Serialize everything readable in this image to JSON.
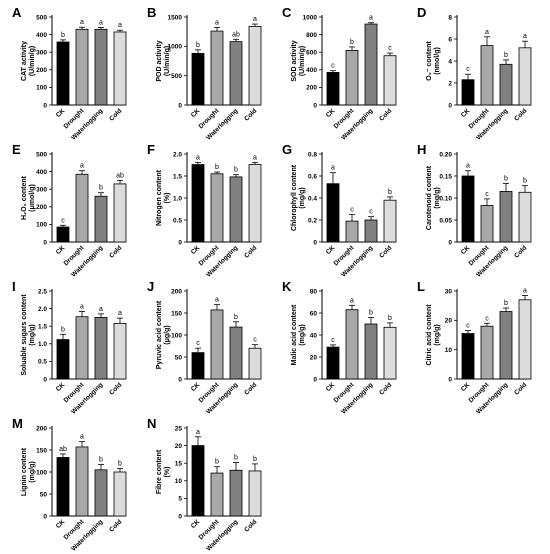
{
  "chart_data": [
    {
      "panel": "A",
      "type": "bar",
      "ylabel": [
        "CAT activity",
        "(U/min/g)"
      ],
      "ylim": [
        0,
        500
      ],
      "yticks": [
        0,
        100,
        200,
        300,
        400,
        500
      ],
      "categories": [
        "CK",
        "Drought",
        "Waterlogging",
        "Cold"
      ],
      "values": [
        358,
        430,
        430,
        415
      ],
      "errors": [
        12,
        12,
        10,
        10
      ],
      "letters": [
        "b",
        "a",
        "a",
        "a"
      ]
    },
    {
      "panel": "B",
      "type": "bar",
      "ylabel": [
        "POD activity",
        "(U/min/g)"
      ],
      "ylim": [
        0,
        1500
      ],
      "yticks": [
        0,
        500,
        1000,
        1500
      ],
      "categories": [
        "CK",
        "Drought",
        "Waterlogging",
        "Cold"
      ],
      "values": [
        880,
        1260,
        1080,
        1340
      ],
      "errors": [
        60,
        60,
        40,
        40
      ],
      "letters": [
        "b",
        "a",
        "ab",
        "a"
      ]
    },
    {
      "panel": "C",
      "type": "bar",
      "ylabel": [
        "SOD activity",
        "(U/min/g)"
      ],
      "ylim": [
        0,
        1000
      ],
      "yticks": [
        0,
        200,
        400,
        600,
        800,
        1000
      ],
      "categories": [
        "CK",
        "Drought",
        "Waterlogging",
        "Cold"
      ],
      "values": [
        370,
        620,
        920,
        560
      ],
      "errors": [
        20,
        40,
        15,
        30
      ],
      "letters": [
        "c",
        "b",
        "a",
        "c"
      ]
    },
    {
      "panel": "D",
      "type": "bar",
      "ylabel": [
        "O₂⁻ content",
        "(nmol/g)"
      ],
      "ylim": [
        0,
        8
      ],
      "yticks": [
        0,
        2,
        4,
        6,
        8
      ],
      "categories": [
        "CK",
        "Drought",
        "Waterlogging",
        "Cold"
      ],
      "values": [
        2.3,
        5.4,
        3.7,
        5.2
      ],
      "errors": [
        0.5,
        0.8,
        0.4,
        0.6
      ],
      "letters": [
        "c",
        "a",
        "b",
        "a"
      ]
    },
    {
      "panel": "E",
      "type": "bar",
      "ylabel": [
        "H₂O₂ content",
        "(μmol/g)"
      ],
      "ylim": [
        0,
        500
      ],
      "yticks": [
        0,
        100,
        200,
        300,
        400,
        500
      ],
      "categories": [
        "CK",
        "Drought",
        "Waterlogging",
        "Cold"
      ],
      "values": [
        85,
        385,
        260,
        330
      ],
      "errors": [
        10,
        20,
        20,
        20
      ],
      "letters": [
        "c",
        "a",
        "b",
        "ab"
      ]
    },
    {
      "panel": "F",
      "type": "bar",
      "ylabel": [
        "Nitrogen content",
        "(%)"
      ],
      "ylim": [
        0,
        2.0
      ],
      "yticks": [
        0,
        0.5,
        1.0,
        1.5,
        2.0
      ],
      "categories": [
        "CK",
        "Drought",
        "Waterlogging",
        "Cold"
      ],
      "values": [
        1.76,
        1.55,
        1.48,
        1.76
      ],
      "errors": [
        0.05,
        0.04,
        0.05,
        0.05
      ],
      "letters": [
        "a",
        "b",
        "b",
        "a"
      ]
    },
    {
      "panel": "G",
      "type": "bar",
      "ylabel": [
        "Chlorophyll content",
        "(mg/g)"
      ],
      "ylim": [
        0,
        0.8
      ],
      "yticks": [
        0,
        0.2,
        0.4,
        0.6,
        0.8
      ],
      "categories": [
        "CK",
        "Drought",
        "Waterlogging",
        "Cold"
      ],
      "values": [
        0.53,
        0.19,
        0.2,
        0.38
      ],
      "errors": [
        0.1,
        0.06,
        0.03,
        0.03
      ],
      "letters": [
        "a",
        "c",
        "c",
        "b"
      ]
    },
    {
      "panel": "H",
      "type": "bar",
      "ylabel": [
        "Carotenoid content",
        "(mg/g)"
      ],
      "ylim": [
        0,
        0.2
      ],
      "yticks": [
        0,
        0.05,
        0.1,
        0.15,
        0.2
      ],
      "categories": [
        "CK",
        "Drought",
        "Waterlogging",
        "Cold"
      ],
      "values": [
        0.15,
        0.083,
        0.115,
        0.113
      ],
      "errors": [
        0.012,
        0.015,
        0.018,
        0.015
      ],
      "letters": [
        "a",
        "c",
        "b",
        "b"
      ]
    },
    {
      "panel": "I",
      "type": "bar",
      "ylabel": [
        "Soluable sugars content",
        "(mg/g)"
      ],
      "ylim": [
        0,
        2.5
      ],
      "yticks": [
        0,
        0.5,
        1.0,
        1.5,
        2.0,
        2.5
      ],
      "categories": [
        "CK",
        "Drought",
        "Waterlogging",
        "Cold"
      ],
      "values": [
        1.12,
        1.77,
        1.75,
        1.58
      ],
      "errors": [
        0.15,
        0.15,
        0.1,
        0.15
      ],
      "letters": [
        "b",
        "a",
        "a",
        "a"
      ]
    },
    {
      "panel": "J",
      "type": "bar",
      "ylabel": [
        "Pyruvic acid content",
        "(μg/g)"
      ],
      "ylim": [
        0,
        200
      ],
      "yticks": [
        0,
        50,
        100,
        150,
        200
      ],
      "categories": [
        "CK",
        "Drought",
        "Waterlogging",
        "Cold"
      ],
      "values": [
        60,
        157,
        118,
        70
      ],
      "errors": [
        10,
        12,
        12,
        8
      ],
      "letters": [
        "c",
        "a",
        "b",
        "c"
      ]
    },
    {
      "panel": "K",
      "type": "bar",
      "ylabel": [
        "Malic acid content",
        "(mg/g)"
      ],
      "ylim": [
        0,
        80
      ],
      "yticks": [
        0,
        20,
        40,
        60,
        80
      ],
      "categories": [
        "CK",
        "Drought",
        "Waterlogging",
        "Cold"
      ],
      "values": [
        29,
        63,
        50,
        47
      ],
      "errors": [
        2,
        4,
        6,
        4
      ],
      "letters": [
        "c",
        "a",
        "b",
        "b"
      ]
    },
    {
      "panel": "L",
      "type": "bar",
      "ylabel": [
        "Citric acid content",
        "(mg/g)"
      ],
      "ylim": [
        0,
        30
      ],
      "yticks": [
        0,
        10,
        20,
        30
      ],
      "categories": [
        "CK",
        "Drought",
        "Waterlogging",
        "Cold"
      ],
      "values": [
        15.5,
        18,
        23,
        27
      ],
      "errors": [
        1,
        1,
        1.2,
        1.5
      ],
      "letters": [
        "c",
        "c",
        "b",
        "a"
      ]
    },
    {
      "panel": "M",
      "type": "bar",
      "ylabel": [
        "Lignin content",
        "(mg/g)"
      ],
      "ylim": [
        0,
        200
      ],
      "yticks": [
        0,
        50,
        100,
        150,
        200
      ],
      "categories": [
        "CK",
        "Drought",
        "Waterlogging",
        "Cold"
      ],
      "values": [
        133,
        157,
        105,
        100
      ],
      "errors": [
        8,
        12,
        12,
        8
      ],
      "letters": [
        "ab",
        "a",
        "b",
        "b"
      ]
    },
    {
      "panel": "N",
      "type": "bar",
      "ylabel": [
        "Fibre content",
        "(%)"
      ],
      "ylim": [
        0,
        25
      ],
      "yticks": [
        0,
        5,
        10,
        15,
        20,
        25
      ],
      "categories": [
        "CK",
        "Drought",
        "Waterlogging",
        "Cold"
      ],
      "values": [
        20,
        12.2,
        13,
        12.8
      ],
      "errors": [
        2.5,
        1.8,
        2.2,
        2
      ],
      "letters": [
        "a",
        "b",
        "b",
        "b"
      ]
    }
  ],
  "bar_colors": [
    "#000000",
    "#a8a8a8",
    "#808080",
    "#dcdcdc"
  ]
}
